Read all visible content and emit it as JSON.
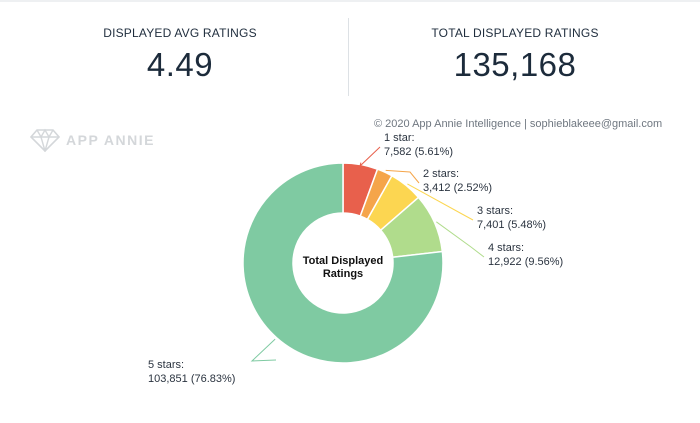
{
  "stats": {
    "avg_label": "DISPLAYED AVG RATINGS",
    "avg_value": "4.49",
    "total_label": "TOTAL DISPLAYED RATINGS",
    "total_value": "135,168"
  },
  "watermark": {
    "text": "APP ANNIE",
    "icon": "diamond-logo-icon"
  },
  "copyright": "© 2020 App Annie Intelligence | sophieblakeee@gmail.com",
  "chart_data": {
    "type": "pie",
    "donut": true,
    "center_label": [
      "Total Displayed",
      "Ratings"
    ],
    "categories": [
      "1 star:",
      "2 stars:",
      "3 stars:",
      "4 stars:",
      "5 stars:"
    ],
    "values": [
      7582,
      3412,
      7401,
      12922,
      103851
    ],
    "value_labels": [
      "7,582 (5.61%)",
      "3,412 (2.52%)",
      "7,401 (5.48%)",
      "12,922 (9.56%)",
      "103,851 (76.83%)"
    ],
    "percentages": [
      5.61,
      2.52,
      5.48,
      9.56,
      76.83
    ],
    "colors": [
      "#e8604c",
      "#f5a54a",
      "#fcd651",
      "#b0dc8c",
      "#7fcaa2"
    ]
  }
}
